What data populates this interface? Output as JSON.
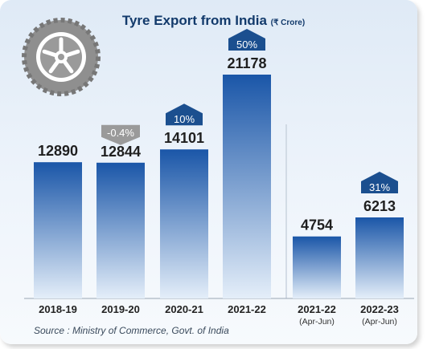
{
  "chart_data": {
    "type": "bar",
    "title": "Tyre Export from India",
    "unit": "(₹ Crore)",
    "categories": [
      {
        "label": "2018-19",
        "sublabel": ""
      },
      {
        "label": "2019-20",
        "sublabel": ""
      },
      {
        "label": "2020-21",
        "sublabel": ""
      },
      {
        "label": "2021-22",
        "sublabel": ""
      },
      {
        "label": "2021-22",
        "sublabel": "(Apr-Jun)"
      },
      {
        "label": "2022-23",
        "sublabel": "(Apr-Jun)"
      }
    ],
    "values": [
      12890,
      12844,
      14101,
      21178,
      4754,
      6213
    ],
    "growth": [
      {
        "index": 1,
        "text": "-0.4%",
        "direction": "down"
      },
      {
        "index": 2,
        "text": "10%",
        "direction": "up"
      },
      {
        "index": 3,
        "text": "50%",
        "direction": "up"
      },
      {
        "index": 5,
        "text": "31%",
        "direction": "up"
      }
    ],
    "groups": [
      {
        "name": "annual",
        "indices": [
          0,
          1,
          2,
          3
        ]
      },
      {
        "name": "quarter",
        "indices": [
          4,
          5
        ]
      }
    ],
    "colors": {
      "bar_top": "#1a56a8",
      "bar_bottom": "#e4eef9",
      "up_badge": "#1b4f8f",
      "down_badge": "#9a9a9a",
      "title": "#123a6b"
    }
  },
  "icon": "tyre-icon",
  "source": "Source : Ministry of Commerce, Govt. of India"
}
